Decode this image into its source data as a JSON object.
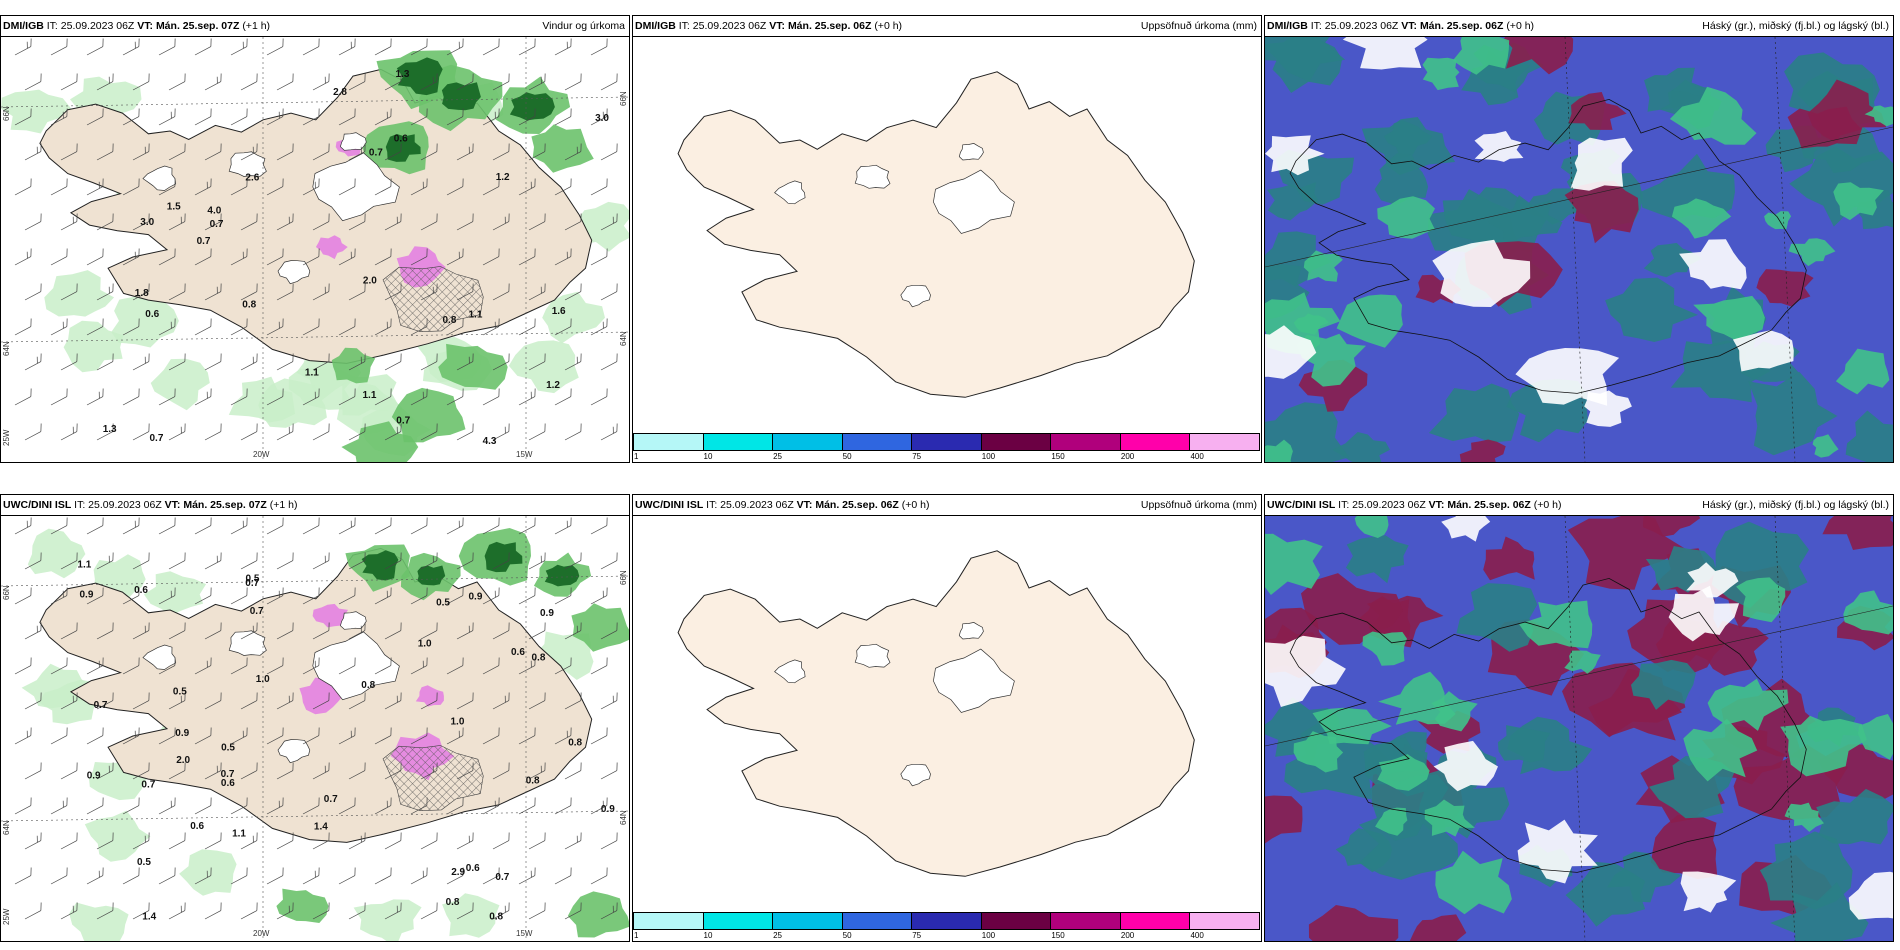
{
  "panels": [
    {
      "source": "DMI/IGB",
      "it": "IT: 25.09.2023 06Z",
      "vt_label": "VT:",
      "vt": "Mán. 25.sep. 07Z",
      "lead": "(+1 h)",
      "title": "Vindur og úrkoma",
      "lon_labels": [
        "20W",
        "15W"
      ],
      "lat_labels": [
        "66N",
        "64N",
        "25W",
        "66N",
        "64N"
      ],
      "values": [
        "0.7",
        "0.8",
        "0.8",
        "1.8",
        "1.5",
        "1.1",
        "1.2",
        "1.2",
        "1.1",
        "1.6",
        "3.0",
        "3.0",
        "4.3",
        "0.7",
        "1.3",
        "1.1",
        "0.6",
        "0.6",
        "0.7",
        "2.8",
        "2.0",
        "2.6",
        "4.0",
        "1.3",
        "0.7",
        "0.7"
      ]
    },
    {
      "source": "DMI/IGB",
      "it": "IT: 25.09.2023 06Z",
      "vt_label": "VT:",
      "vt": "Mán. 25.sep. 06Z",
      "lead": "(+0 h)",
      "title": "Uppsöfnuð úrkoma (mm)",
      "colorbar": [
        "1",
        "10",
        "25",
        "50",
        "75",
        "100",
        "150",
        "200",
        "400"
      ]
    },
    {
      "source": "DMI/IGB",
      "it": "IT: 25.09.2023 06Z",
      "vt_label": "VT:",
      "vt": "Mán. 25.sep. 06Z",
      "lead": "(+0 h)",
      "title": "Háský (gr.), miðský (fj.bl.) og lágský (bl.)"
    },
    {
      "source": "UWC/DINI ISL",
      "it": "IT: 25.09.2023 06Z",
      "vt_label": "VT:",
      "vt": "Mán. 25.sep. 07Z",
      "lead": "(+1 h)",
      "title": "",
      "lon_labels": [
        "20W",
        "15W"
      ],
      "lat_labels": [
        "66N",
        "64N",
        "25W",
        "66N",
        "64N"
      ],
      "values": [
        "0.6",
        "0.7",
        "0.9",
        "0.7",
        "0.8",
        "0.7",
        "1.1",
        "0.8",
        "1.0",
        "0.5",
        "0.9",
        "0.7",
        "1.4",
        "0.9",
        "0.8",
        "1.1",
        "0.9",
        "0.6",
        "1.0",
        "0.7",
        "0.6",
        "0.8",
        "0.5",
        "0.6",
        "1.0",
        "0.7",
        "0.5",
        "0.5",
        "0.8",
        "2.0",
        "0.9",
        "1.4",
        "2.9",
        "0.5",
        "0.6",
        "0.8",
        "0.7",
        "0.9"
      ]
    },
    {
      "source": "UWC/DINI ISL",
      "it": "IT: 25.09.2023 06Z",
      "vt_label": "VT:",
      "vt": "Mán. 25.sep. 06Z",
      "lead": "(+0 h)",
      "title": "Uppsöfnuð úrkoma (mm)",
      "colorbar": [
        "1",
        "10",
        "25",
        "50",
        "75",
        "100",
        "150",
        "200",
        "400"
      ]
    },
    {
      "source": "UWC/DINI ISL",
      "it": "IT: 25.09.2023 06Z",
      "vt_label": "VT:",
      "vt": "Mán. 25.sep. 06Z",
      "lead": "(+0 h)",
      "title": "Háský (gr.), miðský (fj.bl.) og lágský (bl.)"
    }
  ],
  "colors": {
    "land": "#efe2d2",
    "land_plain": "#fbefe2",
    "glacier": "#ffffff",
    "precip_light": "#c9efc9",
    "precip_mid": "#6cc26c",
    "precip_dark": "#1d6e2a",
    "precip_pink": "#e58be0",
    "high_cloud": "#2a7f86",
    "mid_cloud": "#4a57c8",
    "low_cloud": "#8a1e4d",
    "cloud_green": "#40c28a",
    "colorbar": [
      "#b5f7f7",
      "#00e6e6",
      "#00bfe6",
      "#2f66e0",
      "#2a2ab0",
      "#6b0043",
      "#b0007c",
      "#ff00aa",
      "#f7b0f0"
    ]
  }
}
